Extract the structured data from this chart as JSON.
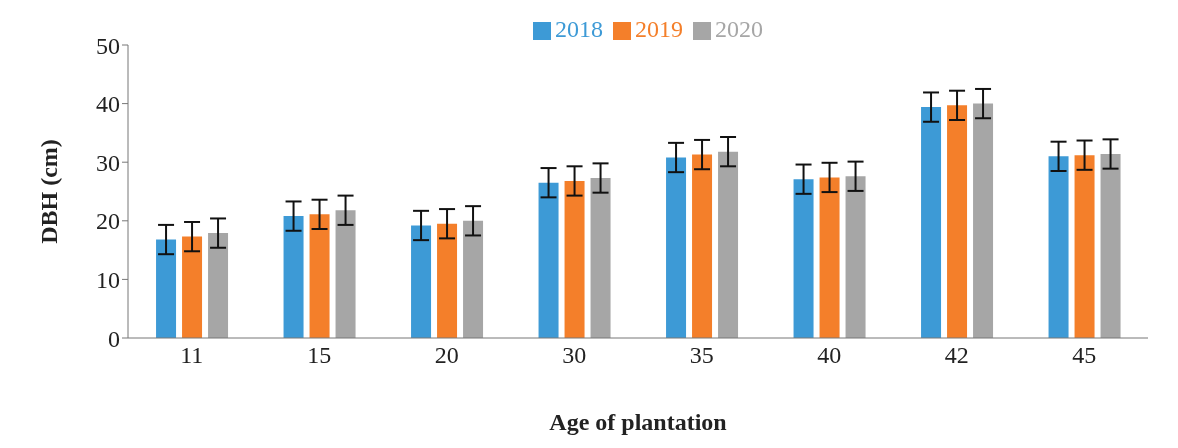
{
  "chart_data": {
    "type": "bar",
    "xlabel": "Age of plantation",
    "ylabel": "DBH (cm)",
    "categories": [
      "11",
      "15",
      "20",
      "30",
      "35",
      "40",
      "42",
      "45"
    ],
    "series": [
      {
        "name": "2018",
        "color": "#3d9ad6",
        "values": [
          16.8,
          20.8,
          19.2,
          26.5,
          30.8,
          27.1,
          39.4,
          31.0
        ],
        "errors": [
          2.5,
          2.5,
          2.5,
          2.5,
          2.5,
          2.5,
          2.5,
          2.5
        ]
      },
      {
        "name": "2019",
        "color": "#f47f2a",
        "values": [
          17.3,
          21.1,
          19.5,
          26.8,
          31.3,
          27.4,
          39.7,
          31.2
        ],
        "errors": [
          2.5,
          2.5,
          2.5,
          2.5,
          2.5,
          2.5,
          2.5,
          2.5
        ]
      },
      {
        "name": "2020",
        "color": "#a6a6a6",
        "values": [
          17.9,
          21.8,
          20.0,
          27.3,
          31.8,
          27.6,
          40.0,
          31.4
        ],
        "errors": [
          2.5,
          2.5,
          2.5,
          2.5,
          2.5,
          2.5,
          2.5,
          2.5
        ]
      }
    ],
    "ylim": [
      0,
      50
    ],
    "yticks": [
      0,
      10,
      20,
      30,
      40,
      50
    ],
    "grid": false,
    "legend": "top"
  }
}
